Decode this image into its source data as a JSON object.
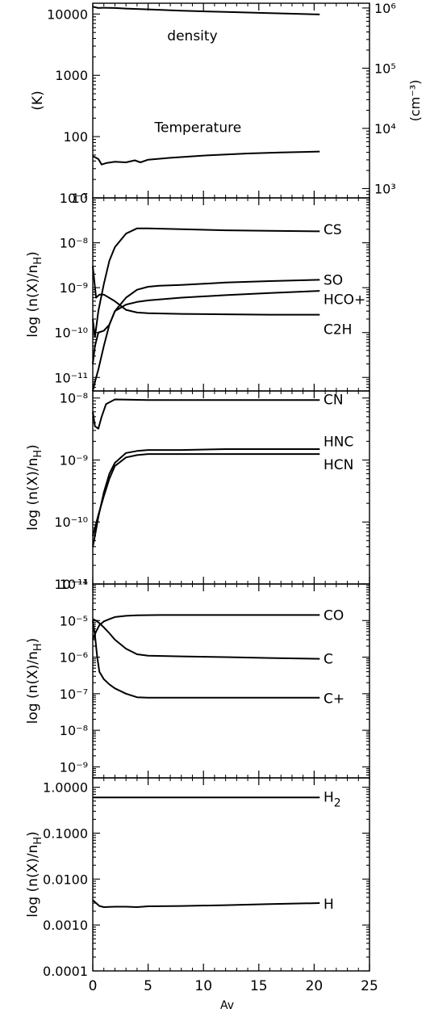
{
  "chart_data": [
    {
      "type": "line",
      "name": "temperature-density",
      "yscale": "log",
      "xlim": [
        0,
        25
      ],
      "ylim": [
        10,
        15000
      ],
      "ylabel": "(K)",
      "y_ticks": [
        {
          "value": 10,
          "label": "10"
        },
        {
          "value": 100,
          "label": "100"
        },
        {
          "value": 1000,
          "label": "1000"
        },
        {
          "value": 10000,
          "label": "10000"
        }
      ],
      "y2label": "(cm⁻³)",
      "y2lim": [
        700,
        1200000
      ],
      "y2_ticks": [
        {
          "value": 1000,
          "label": "10³"
        },
        {
          "value": 10000,
          "label": "10⁴"
        },
        {
          "value": 100000,
          "label": "10⁵"
        },
        {
          "value": 1000000,
          "label": "10⁶"
        }
      ],
      "series": [
        {
          "name": "density",
          "axis": "right",
          "label_x": 9.0,
          "label_y": 350000,
          "x": [
            0,
            0.5,
            1,
            2,
            3,
            5,
            8,
            12,
            16,
            20.5
          ],
          "y": [
            1050000,
            1000000,
            1010000,
            1000000,
            980000,
            950000,
            900000,
            860000,
            820000,
            780000
          ]
        },
        {
          "name": "Temperature",
          "axis": "left",
          "label_x": 9.5,
          "label_y": 142,
          "x": [
            0,
            0.3,
            0.5,
            0.8,
            1.2,
            2,
            3,
            3.8,
            4.3,
            5,
            7,
            10,
            14,
            17,
            20.5
          ],
          "y": [
            48,
            45,
            43,
            35,
            37,
            39,
            38,
            41,
            38,
            42,
            45,
            49,
            53,
            55,
            57
          ]
        }
      ]
    },
    {
      "type": "line",
      "name": "sulfur-carbon-chains",
      "yscale": "log",
      "xlim": [
        0,
        25
      ],
      "ylim": [
        5e-12,
        1e-07
      ],
      "ylabel": "log (n(X)/n_H)",
      "y_ticks": [
        {
          "value": 1e-11,
          "label": "10⁻¹¹"
        },
        {
          "value": 1e-10,
          "label": "10⁻¹⁰"
        },
        {
          "value": 1e-09,
          "label": "10⁻⁹"
        },
        {
          "value": 1e-08,
          "label": "10⁻⁸"
        },
        {
          "value": 1e-07,
          "label": "10⁻⁷"
        }
      ],
      "series": [
        {
          "name": "CS",
          "label_y": 2e-08,
          "x": [
            0,
            0.2,
            0.5,
            1,
            1.5,
            2,
            3,
            4,
            5,
            8,
            12,
            16,
            20.5
          ],
          "y": [
            2e-10,
            8e-11,
            3e-10,
            1.2e-09,
            4e-09,
            8e-09,
            1.6e-08,
            2.1e-08,
            2.1e-08,
            2e-08,
            1.9e-08,
            1.85e-08,
            1.8e-08
          ]
        },
        {
          "name": "SO",
          "label_y": 1.5e-09,
          "x": [
            0,
            0.2,
            0.5,
            1,
            1.5,
            2,
            3,
            4,
            5,
            6,
            8,
            12,
            16,
            20.5
          ],
          "y": [
            5e-12,
            8e-12,
            1.5e-11,
            5e-11,
            1.5e-10,
            3e-10,
            6e-10,
            9e-10,
            1.05e-09,
            1.1e-09,
            1.15e-09,
            1.3e-09,
            1.4e-09,
            1.5e-09
          ]
        },
        {
          "name": "HCO+",
          "label_y": 5.5e-10,
          "x": [
            0,
            0.2,
            0.5,
            1,
            1.5,
            2,
            3,
            4,
            5,
            8,
            12,
            16,
            20.5
          ],
          "y": [
            2e-11,
            5e-11,
            1e-10,
            1.1e-10,
            1.5e-10,
            3e-10,
            4.2e-10,
            4.8e-10,
            5.2e-10,
            6e-10,
            6.8e-10,
            7.6e-10,
            8.5e-10
          ]
        },
        {
          "name": "C2H",
          "label_y": 1.2e-10,
          "x": [
            0,
            0.3,
            0.6,
            1,
            2,
            3,
            4,
            5,
            8,
            12,
            16,
            20.5
          ],
          "y": [
            3e-09,
            6e-10,
            7e-10,
            7e-10,
            5e-10,
            3.2e-10,
            2.8e-10,
            2.7e-10,
            2.6e-10,
            2.55e-10,
            2.5e-10,
            2.5e-10
          ]
        }
      ]
    },
    {
      "type": "line",
      "name": "nitrogen-species",
      "yscale": "log",
      "xlim": [
        0,
        25
      ],
      "ylim": [
        1e-11,
        1.3e-08
      ],
      "ylabel": "log (n(X)/n_H)",
      "y_ticks": [
        {
          "value": 1e-11,
          "label": "10⁻¹¹"
        },
        {
          "value": 1e-10,
          "label": "10⁻¹⁰"
        },
        {
          "value": 1e-09,
          "label": "10⁻⁹"
        },
        {
          "value": 1e-08,
          "label": "10⁻⁸"
        }
      ],
      "series": [
        {
          "name": "CN",
          "label_y": 9.5e-09,
          "x": [
            0,
            0.2,
            0.5,
            0.8,
            1.2,
            2,
            3,
            5,
            8,
            12,
            16,
            20.5
          ],
          "y": [
            6e-09,
            3.5e-09,
            3.2e-09,
            5e-09,
            8e-09,
            9.5e-09,
            9.4e-09,
            9.3e-09,
            9.3e-09,
            9.3e-09,
            9.3e-09,
            9.3e-09
          ]
        },
        {
          "name": "HNC",
          "label_y": 2e-09,
          "x": [
            0,
            0.2,
            0.5,
            1,
            1.5,
            2,
            3,
            4,
            5,
            8,
            12,
            16,
            20.5
          ],
          "y": [
            4e-11,
            6e-11,
            1.2e-10,
            3e-10,
            6e-10,
            9e-10,
            1.3e-09,
            1.4e-09,
            1.45e-09,
            1.45e-09,
            1.5e-09,
            1.5e-09,
            1.5e-09
          ]
        },
        {
          "name": "HCN",
          "label_y": 8.5e-10,
          "x": [
            0,
            0.2,
            0.5,
            1,
            1.5,
            2,
            3,
            4,
            5,
            8,
            12,
            16,
            20.5
          ],
          "y": [
            6e-11,
            8e-11,
            1.3e-10,
            2.6e-10,
            5e-10,
            8e-10,
            1.1e-09,
            1.2e-09,
            1.25e-09,
            1.25e-09,
            1.25e-09,
            1.25e-09,
            1.25e-09
          ]
        }
      ]
    },
    {
      "type": "line",
      "name": "carbon-species",
      "yscale": "log",
      "xlim": [
        0,
        25
      ],
      "ylim": [
        5e-10,
        0.0001
      ],
      "ylabel": "log (n(X)/n_H)",
      "y_ticks": [
        {
          "value": 1e-09,
          "label": "10⁻⁹"
        },
        {
          "value": 1e-08,
          "label": "10⁻⁸"
        },
        {
          "value": 1e-07,
          "label": "10⁻⁷"
        },
        {
          "value": 1e-06,
          "label": "10⁻⁶"
        },
        {
          "value": 1e-05,
          "label": "10⁻⁵"
        },
        {
          "value": 0.0001,
          "label": "10⁻⁴"
        }
      ],
      "series": [
        {
          "name": "CO",
          "label_y": 1.4e-05,
          "x": [
            0,
            0.3,
            0.6,
            1,
            1.5,
            2,
            3,
            4,
            6,
            10,
            15,
            20.5
          ],
          "y": [
            3e-06,
            5e-06,
            7.5e-06,
            9.5e-06,
            1.1e-05,
            1.25e-05,
            1.35e-05,
            1.4e-05,
            1.42e-05,
            1.42e-05,
            1.42e-05,
            1.42e-05
          ]
        },
        {
          "name": "C",
          "label_y": 9e-07,
          "x": [
            0,
            0.3,
            0.6,
            1,
            1.5,
            2,
            3,
            4,
            5,
            8,
            12,
            16,
            20.5
          ],
          "y": [
            1.1e-05,
            1e-05,
            8.5e-06,
            6.5e-06,
            4.5e-06,
            3e-06,
            1.7e-06,
            1.2e-06,
            1.1e-06,
            1.05e-06,
            1e-06,
            9.5e-07,
            9e-07
          ]
        },
        {
          "name": "C+",
          "label_y": 7.5e-08,
          "x": [
            0,
            0.2,
            0.4,
            0.6,
            1,
            1.5,
            2,
            3,
            4,
            5,
            8,
            12,
            16,
            20.5
          ],
          "y": [
            1e-05,
            4e-06,
            1e-06,
            4e-07,
            2.5e-07,
            1.8e-07,
            1.4e-07,
            1e-07,
            8e-08,
            7.8e-08,
            7.8e-08,
            7.8e-08,
            7.8e-08,
            7.8e-08
          ]
        }
      ]
    },
    {
      "type": "line",
      "name": "hydrogen",
      "yscale": "log",
      "xlim": [
        0,
        25
      ],
      "ylim": [
        0.0001,
        1.6
      ],
      "ylabel": "log (n(X)/n_H)",
      "xlabel": "Av",
      "x_ticks": [
        {
          "value": 0,
          "label": "0"
        },
        {
          "value": 5,
          "label": "5"
        },
        {
          "value": 10,
          "label": "10"
        },
        {
          "value": 15,
          "label": "15"
        },
        {
          "value": 20,
          "label": "20"
        },
        {
          "value": 25,
          "label": "25"
        }
      ],
      "y_ticks": [
        {
          "value": 0.0001,
          "label": "0.0001"
        },
        {
          "value": 0.001,
          "label": "0.0010"
        },
        {
          "value": 0.01,
          "label": "0.0100"
        },
        {
          "value": 0.1,
          "label": "0.1000"
        },
        {
          "value": 1,
          "label": "1.0000"
        }
      ],
      "series": [
        {
          "name": "H₂",
          "label_y": 0.62,
          "x": [
            0,
            5,
            10,
            15,
            20.5
          ],
          "y": [
            0.6,
            0.6,
            0.6,
            0.6,
            0.6
          ]
        },
        {
          "name": "H",
          "label_y": 0.0029,
          "x": [
            0,
            0.3,
            0.6,
            1,
            2,
            3,
            4,
            5,
            8,
            12,
            16,
            20.5
          ],
          "y": [
            0.0035,
            0.003,
            0.0026,
            0.00245,
            0.0025,
            0.0025,
            0.00245,
            0.00255,
            0.0026,
            0.0027,
            0.00285,
            0.003
          ]
        }
      ]
    }
  ]
}
